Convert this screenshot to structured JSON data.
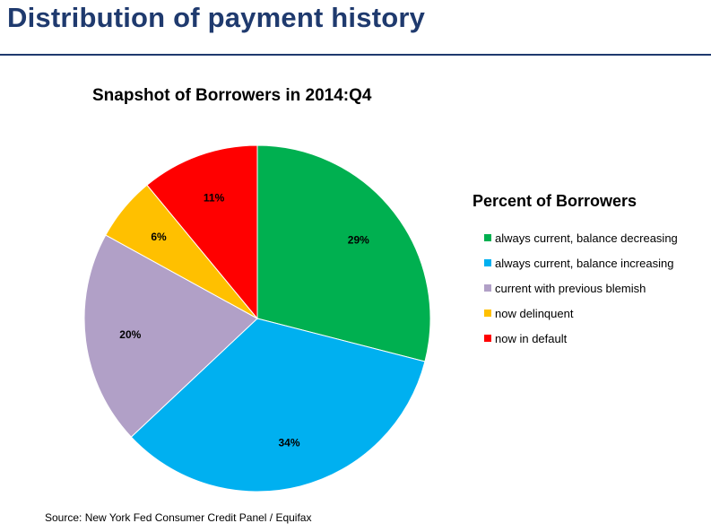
{
  "page": {
    "title": "Distribution of payment history",
    "source": "Source: New York Fed Consumer Credit Panel / Equifax",
    "title_color": "#1f3a6e"
  },
  "chart_data": {
    "type": "pie",
    "title": "Snapshot of Borrowers in 2014:Q4",
    "legend_title": "Percent of Borrowers",
    "legend_position": "right",
    "categories": [
      "always current, balance decreasing",
      "always current, balance increasing",
      "current with previous blemish",
      "now delinquent",
      "now in default"
    ],
    "values": [
      29,
      34,
      20,
      6,
      11
    ],
    "labels": [
      "29%",
      "34%",
      "20%",
      "6%",
      "11%"
    ],
    "colors": [
      "#00b050",
      "#00b0f0",
      "#b1a0c7",
      "#ffc000",
      "#ff0000"
    ]
  }
}
